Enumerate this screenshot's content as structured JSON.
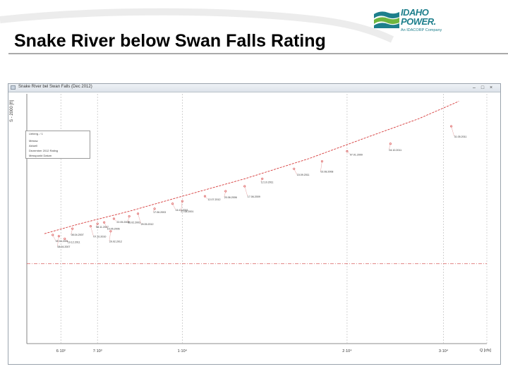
{
  "slide": {
    "title": "Snake River below Swan Falls Rating"
  },
  "logo": {
    "line1": "IDAHO",
    "line2": "POWER.",
    "tagline": "An IDACORP Company",
    "brand_color": "#1e7f8c"
  },
  "window": {
    "title": "Snake River bel Swan Falls (Dec 2012)",
    "controls": [
      "–",
      "□",
      "×"
    ],
    "y_axis_title": "S - 2000 [ft]",
    "x_axis_unit": "Q [cfs]"
  },
  "legend": {
    "header": "Ueberg. / 1",
    "rows": [
      "Messw.",
      "Aktuell",
      "Dezember 2012 Rating",
      "Messpunkt Datum"
    ]
  },
  "chart_data": {
    "type": "scatter",
    "x_scale": "log",
    "x_ticks": [
      {
        "value": 6000,
        "label": "6·10³"
      },
      {
        "value": 7000,
        "label": "7·10³"
      },
      {
        "value": 10000,
        "label": "1·10⁴"
      },
      {
        "value": 20000,
        "label": "2·10⁴"
      },
      {
        "value": 30000,
        "label": "3·10⁴"
      }
    ],
    "xlim": [
      5200,
      36000
    ],
    "ylim": [
      0,
      100
    ],
    "rating_curve": {
      "x": [
        5600,
        6500,
        8000,
        10000,
        13000,
        17000,
        22000,
        27000,
        32000
      ],
      "y": [
        44,
        48,
        53,
        59,
        66,
        74,
        83,
        90,
        97
      ]
    },
    "reference_level": 32,
    "measurements": [
      {
        "x": 5800,
        "y": 43.5,
        "date": "05.04.2001"
      },
      {
        "x": 5950,
        "y": 43,
        "date": "08.04.2007"
      },
      {
        "x": 6100,
        "y": 42,
        "date": "19.12.2011"
      },
      {
        "x": 6300,
        "y": 46,
        "date": "08.04.2007"
      },
      {
        "x": 6800,
        "y": 47,
        "date": "07.10.2010"
      },
      {
        "x": 7000,
        "y": 48,
        "date": "08.11.2007"
      },
      {
        "x": 7200,
        "y": 48.5,
        "date": "15.05.2006"
      },
      {
        "x": 7400,
        "y": 45,
        "date": "29.02.2012"
      },
      {
        "x": 7500,
        "y": 50,
        "date": "22.05.2008"
      },
      {
        "x": 8000,
        "y": 51,
        "date": "15.02.2003"
      },
      {
        "x": 8300,
        "y": 52,
        "date": "29.05.2012"
      },
      {
        "x": 8900,
        "y": 54,
        "date": "17.06.2003"
      },
      {
        "x": 9600,
        "y": 56,
        "date": "16.10.2001"
      },
      {
        "x": 10000,
        "y": 57,
        "date": "27.08.2001"
      },
      {
        "x": 11000,
        "y": 59,
        "date": "12.07.2012"
      },
      {
        "x": 12000,
        "y": 61,
        "date": "20.06.2006"
      },
      {
        "x": 13000,
        "y": 63,
        "date": "17.06.2009"
      },
      {
        "x": 14000,
        "y": 66,
        "date": "12.10.2011"
      },
      {
        "x": 16000,
        "y": 70,
        "date": "15.09.2011"
      },
      {
        "x": 18000,
        "y": 73,
        "date": "02.08.2008"
      },
      {
        "x": 20000,
        "y": 77,
        "date": "07.01.2009"
      },
      {
        "x": 24000,
        "y": 80,
        "date": "04.10.2011"
      },
      {
        "x": 31000,
        "y": 87,
        "date": "31.05.2011"
      }
    ]
  }
}
